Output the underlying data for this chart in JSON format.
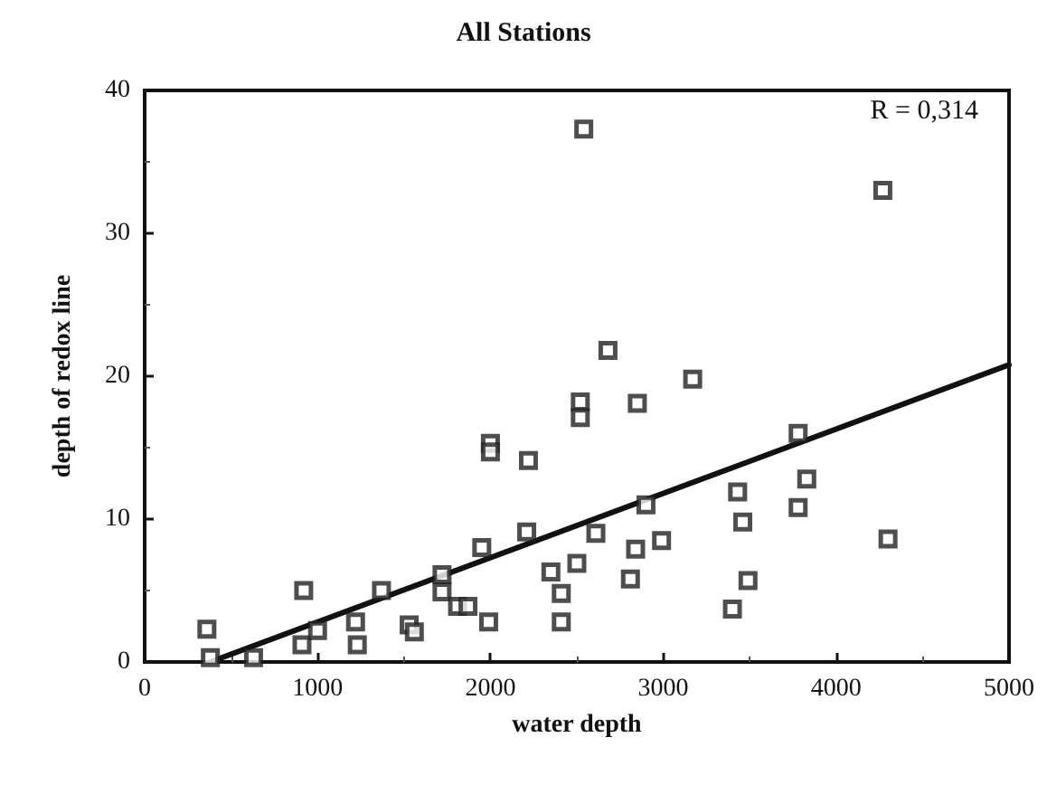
{
  "chart_data": {
    "type": "scatter",
    "title": "All Stations",
    "xlabel": "water depth",
    "ylabel": "depth of redox line",
    "xlim": [
      0,
      5000
    ],
    "xticks": [
      0,
      1000,
      2000,
      3000,
      4000,
      5000
    ],
    "ylim": [
      0,
      40
    ],
    "yticks": [
      0,
      10,
      20,
      30,
      40
    ],
    "grid": false,
    "marker": "square",
    "annotations": [
      "R = 0,314"
    ],
    "series": [
      {
        "color": "#222222",
        "x": [
          360,
          380,
          630,
          910,
          920,
          1000,
          1220,
          1230,
          1370,
          1530,
          1560,
          1720,
          1720,
          1810,
          1870,
          1950,
          1990,
          2000,
          2000,
          2210,
          2220,
          2350,
          2410,
          2410,
          2500,
          2520,
          2520,
          2540,
          2610,
          2680,
          2810,
          2840,
          2850,
          2900,
          2990,
          3170,
          3400,
          3430,
          3460,
          3490,
          3780,
          3780,
          3830,
          4270,
          4300
        ],
        "values": [
          2.3,
          0.3,
          0.3,
          1.2,
          5.0,
          2.2,
          2.8,
          1.2,
          5.0,
          2.6,
          2.1,
          6.1,
          4.9,
          3.9,
          3.9,
          8.0,
          2.8,
          15.3,
          14.7,
          9.1,
          14.1,
          6.3,
          4.8,
          2.8,
          6.9,
          18.2,
          17.1,
          37.3,
          9.0,
          21.8,
          5.8,
          7.9,
          18.1,
          11.0,
          8.5,
          19.8,
          3.7,
          11.9,
          9.8,
          5.7,
          16.0,
          10.8,
          12.8,
          33.0,
          8.6
        ]
      },
      {
        "type": "line",
        "color": "#111111",
        "marker": "none",
        "x": [
          380,
          5000
        ],
        "values": [
          0,
          20.8
        ]
      }
    ]
  }
}
